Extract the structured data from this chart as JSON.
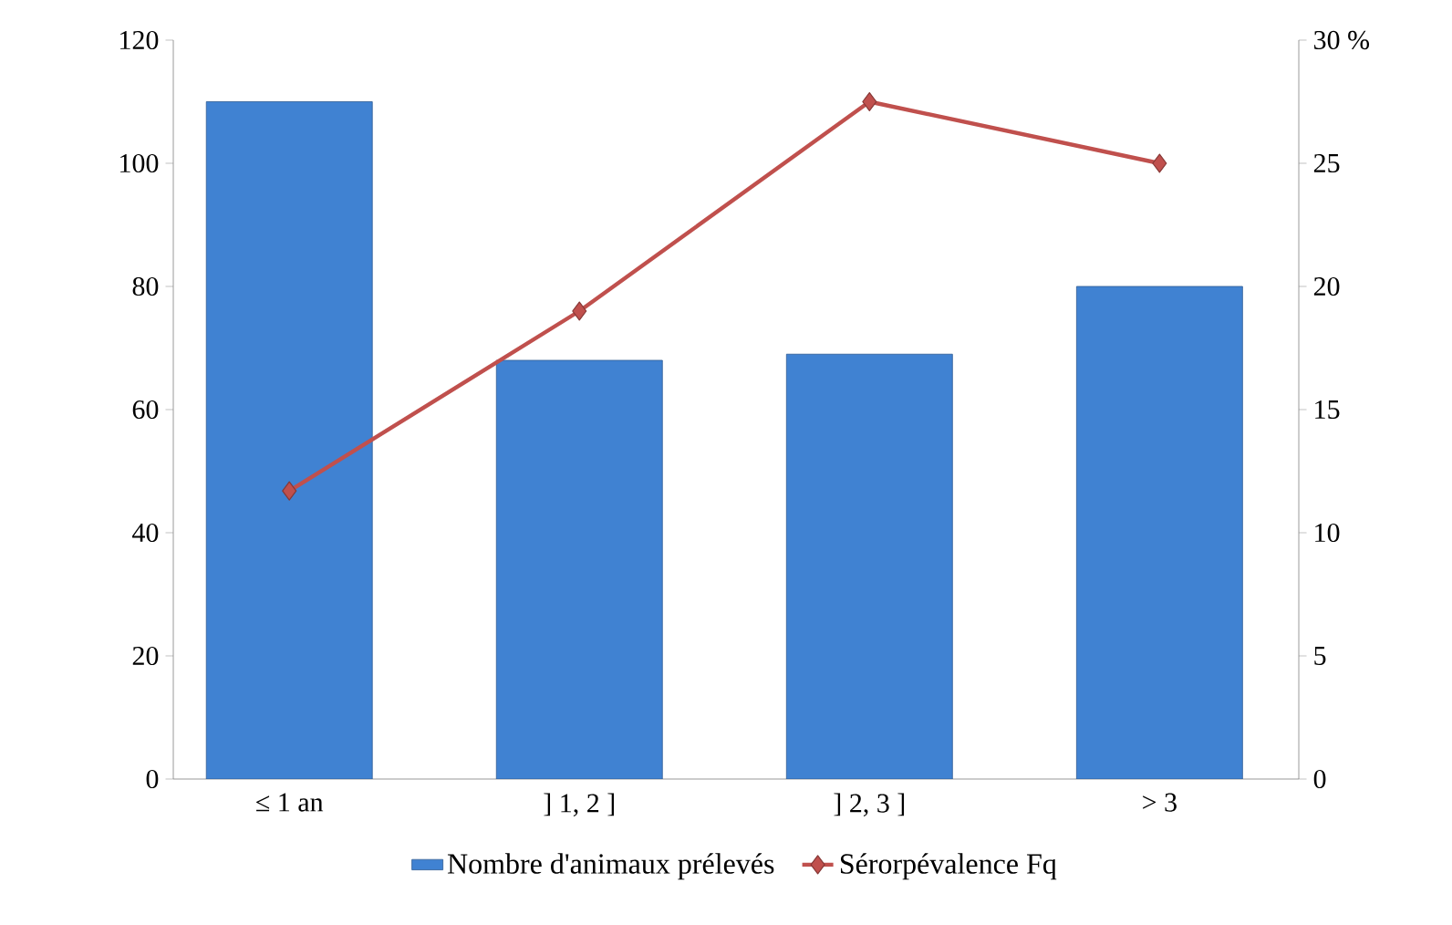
{
  "chart_data": {
    "type": "bar",
    "categories": [
      "≤ 1 an",
      "] 1, 2 ]",
      "] 2, 3 ]",
      "> 3"
    ],
    "series": [
      {
        "name": "Nombre d'animaux prélevés",
        "color": "#4082d2",
        "values": [
          110,
          68,
          69,
          80
        ]
      },
      {
        "name": "Sérorpévalence Fq",
        "type": "line",
        "axis": "y2",
        "color": "#c0504d",
        "marker": "diamond",
        "values": [
          11.7,
          19,
          27.5,
          25
        ]
      }
    ],
    "ylim": [
      0,
      120
    ],
    "yticks": [
      0,
      20,
      40,
      60,
      80,
      100,
      120
    ],
    "y2lim": [
      0,
      30
    ],
    "y2ticks": [
      0,
      5,
      10,
      15,
      20,
      25,
      {
        "value": 30,
        "label": "30 %"
      }
    ],
    "legend": "bottom"
  }
}
